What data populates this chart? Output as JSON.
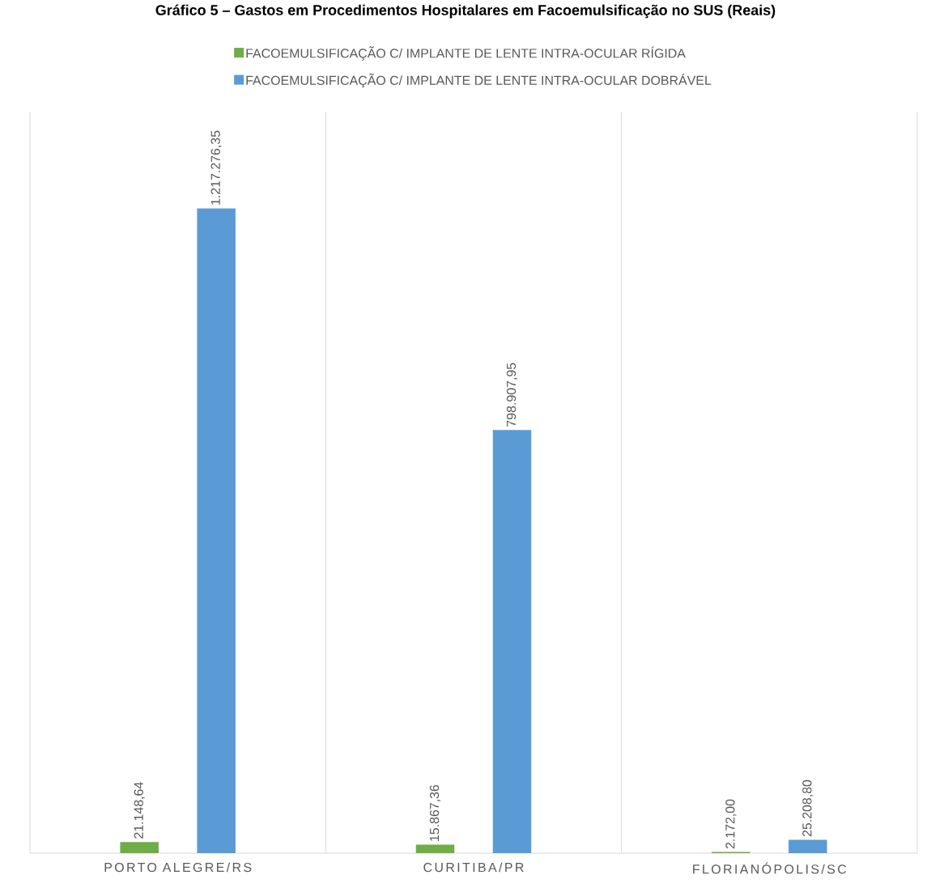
{
  "chart_data": {
    "type": "bar",
    "title": "Gráfico 5 – Gastos em Procedimentos Hospitalares em Facoemulsificação no SUS (Reais)",
    "categories": [
      "PORTO ALEGRE/RS",
      "CURITIBA/PR",
      "FLORIANÓPOLIS/SC"
    ],
    "series": [
      {
        "name": "FACOEMULSIFICAÇÃO C/ IMPLANTE DE LENTE INTRA-OCULAR RÍGIDA",
        "color": "#70ad47",
        "values": [
          21148.64,
          15867.36,
          2172.0
        ],
        "value_labels": [
          "21.148,64",
          "15.867,36",
          "2.172,00"
        ]
      },
      {
        "name": "FACOEMULSIFICAÇÃO C/ IMPLANTE DE LENTE INTRA-OCULAR DOBRÁVEL",
        "color": "#5b9bd5",
        "values": [
          1217276.35,
          798907.95,
          25208.8
        ],
        "value_labels": [
          "1.217.276,35",
          "798.907,95",
          "25.208,80"
        ]
      }
    ],
    "grid": "x",
    "legend": "top"
  }
}
